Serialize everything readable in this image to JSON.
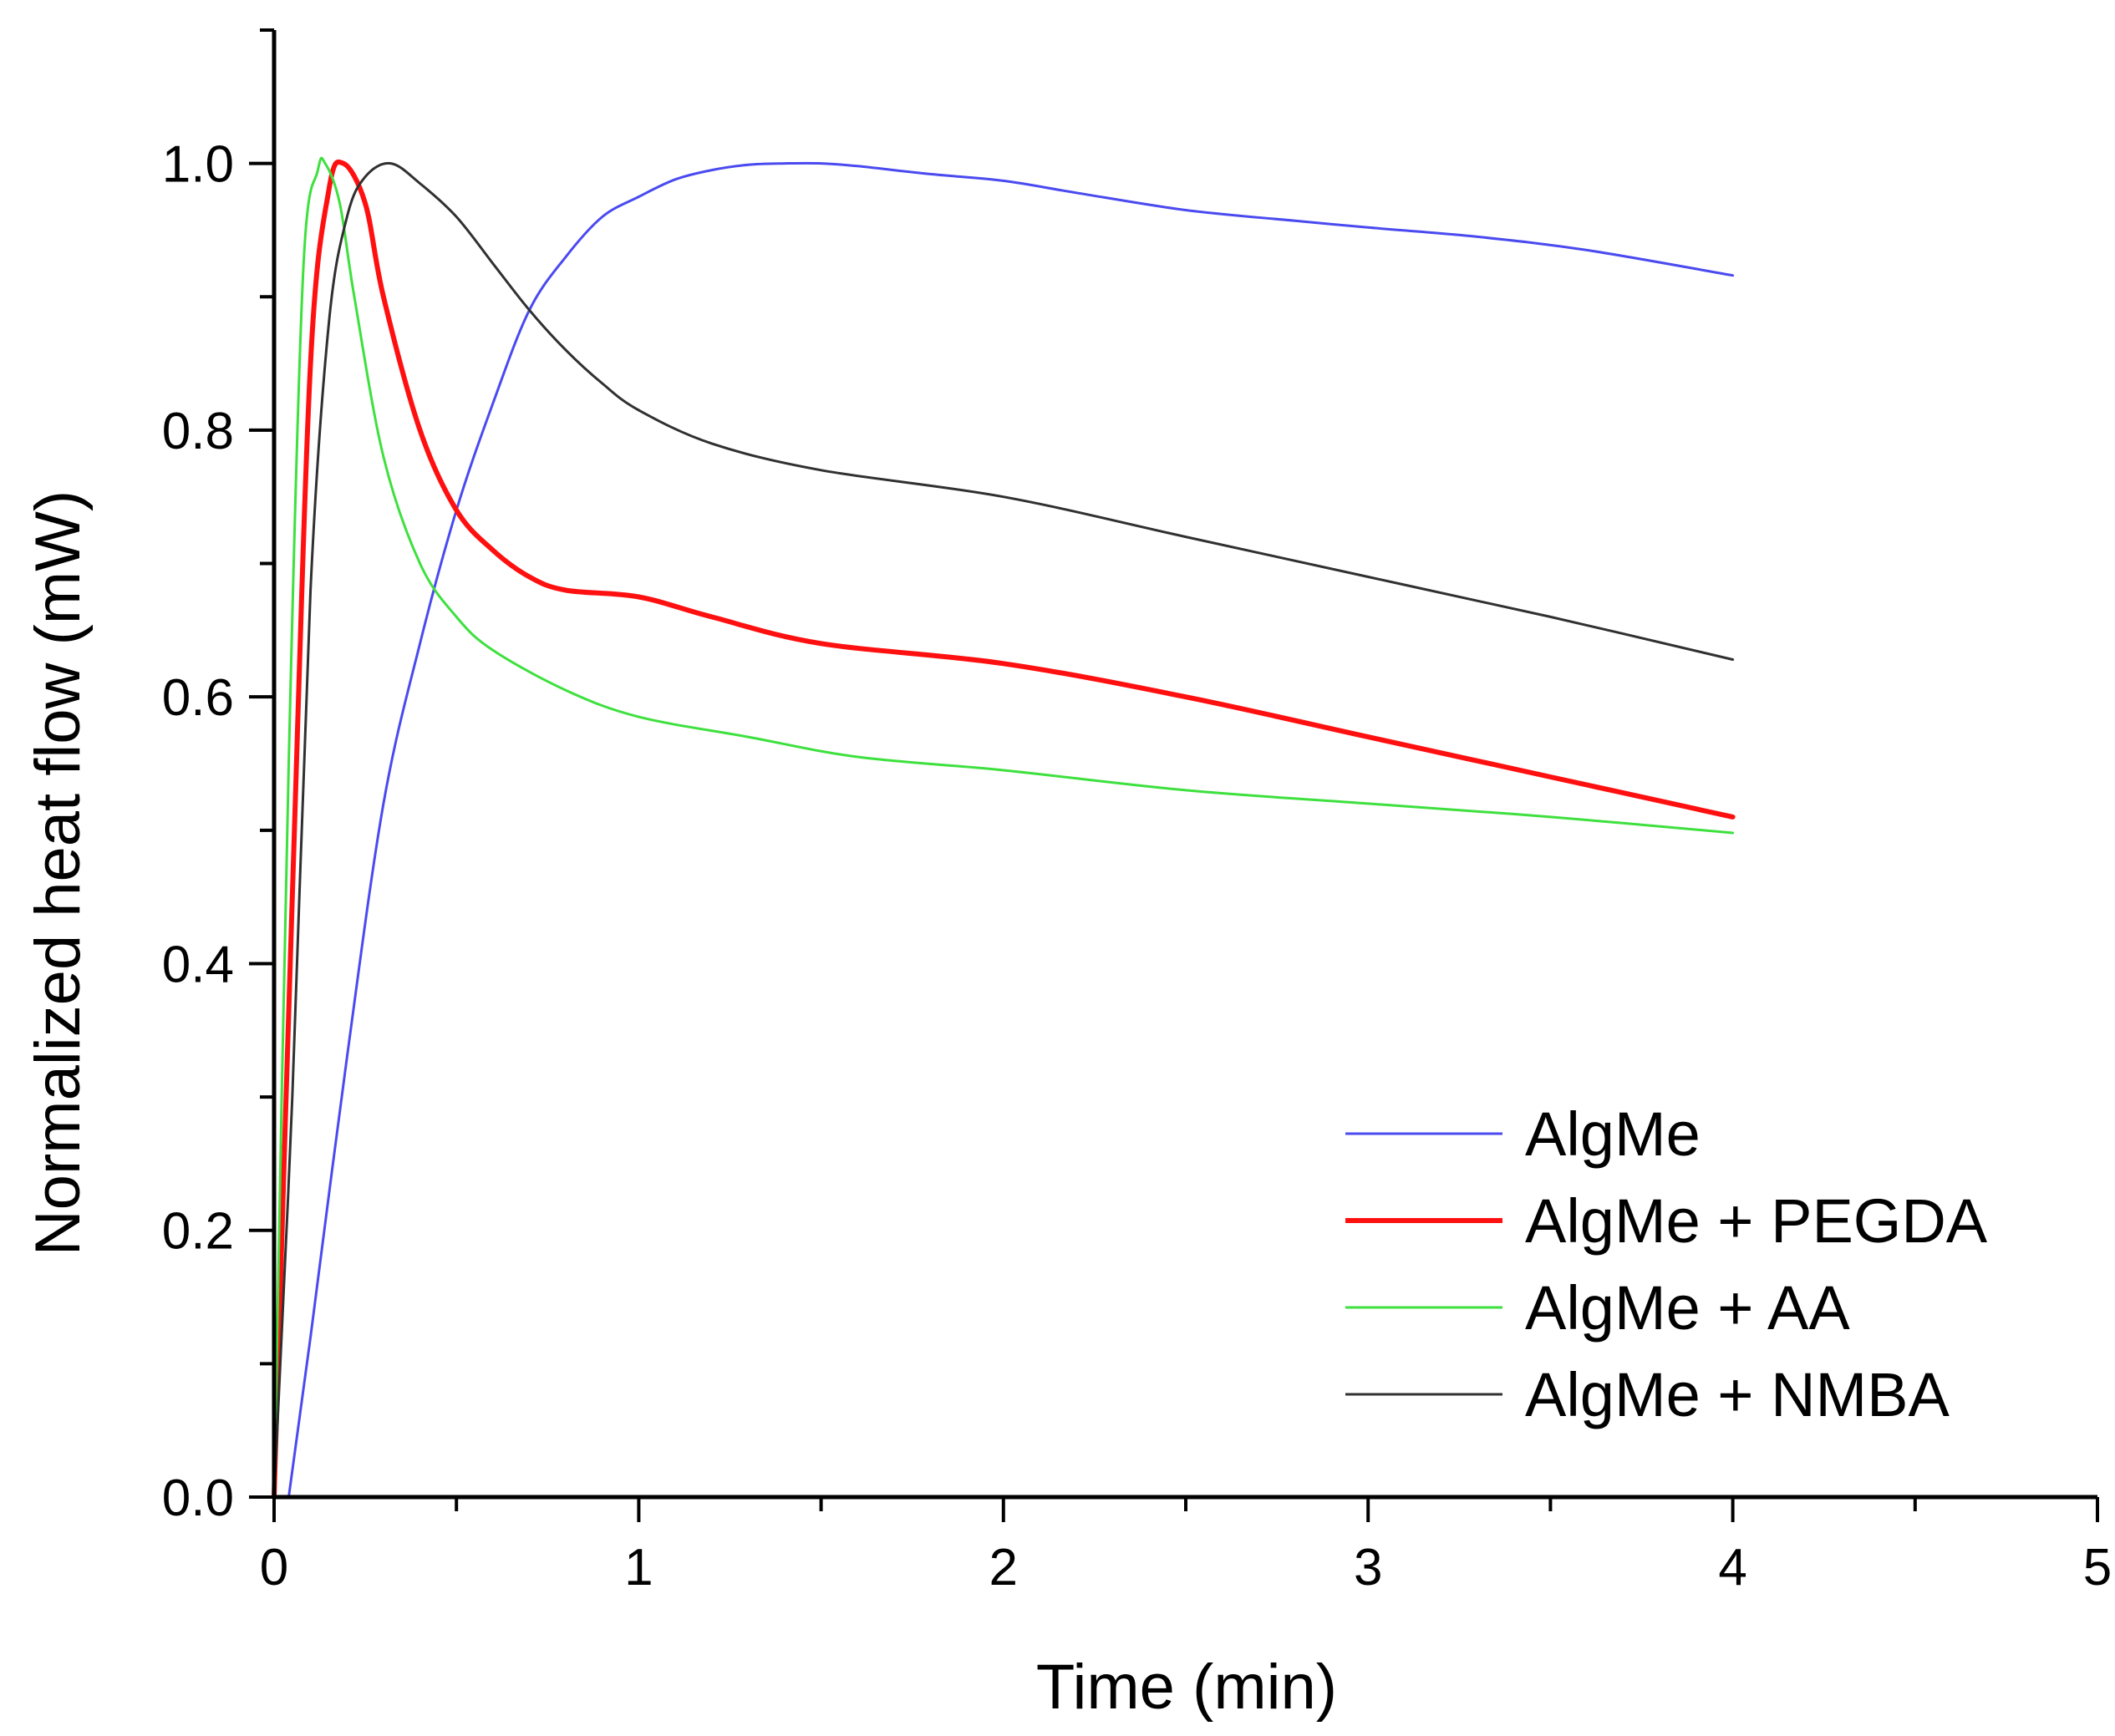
{
  "chart_data": {
    "type": "line",
    "title": "",
    "xlabel": "Time (min)",
    "ylabel": "Normalized heat flow (mW)",
    "xlim": [
      0,
      5
    ],
    "ylim": [
      0,
      1.1
    ],
    "xticks": [
      "0",
      "1",
      "2",
      "3",
      "4",
      "5"
    ],
    "yticks": [
      "0.0",
      "0.2",
      "0.4",
      "0.6",
      "0.8",
      "1.0"
    ],
    "grid": false,
    "legend_position": "bottom-right",
    "series": [
      {
        "name": "AlgMe",
        "color": "#4a4af0",
        "x": [
          0.04,
          0.1,
          0.2,
          0.3,
          0.4,
          0.5,
          0.6,
          0.7,
          0.8,
          0.9,
          1.0,
          1.1,
          1.2,
          1.3,
          1.4,
          1.5,
          1.6,
          1.8,
          2.0,
          2.2,
          2.5,
          2.8,
          3.0,
          3.3,
          3.6,
          4.0
        ],
        "y": [
          0.0,
          0.12,
          0.33,
          0.52,
          0.64,
          0.74,
          0.82,
          0.89,
          0.93,
          0.96,
          0.975,
          0.988,
          0.995,
          0.999,
          1.0,
          1.0,
          0.998,
          0.992,
          0.987,
          0.978,
          0.965,
          0.957,
          0.952,
          0.945,
          0.935,
          0.916
        ]
      },
      {
        "name": "AlgMe + PEGDA",
        "color": "#ff1010",
        "x": [
          0.0,
          0.05,
          0.1,
          0.15,
          0.19,
          0.25,
          0.3,
          0.4,
          0.5,
          0.6,
          0.7,
          0.8,
          1.0,
          1.2,
          1.5,
          2.0,
          2.5,
          3.0,
          3.5,
          4.0
        ],
        "y": [
          0.0,
          0.45,
          0.85,
          0.98,
          1.0,
          0.97,
          0.9,
          0.8,
          0.74,
          0.71,
          0.69,
          0.68,
          0.675,
          0.66,
          0.64,
          0.625,
          0.6,
          0.57,
          0.54,
          0.51
        ]
      },
      {
        "name": "AlgMe + AA",
        "color": "#3ee03e",
        "x": [
          0.0,
          0.04,
          0.08,
          0.12,
          0.14,
          0.18,
          0.22,
          0.3,
          0.4,
          0.5,
          0.6,
          0.8,
          1.0,
          1.3,
          1.6,
          2.0,
          2.5,
          3.0,
          3.5,
          4.0
        ],
        "y": [
          0.0,
          0.55,
          0.92,
          0.995,
          1.0,
          0.97,
          0.9,
          0.78,
          0.7,
          0.66,
          0.635,
          0.605,
          0.585,
          0.57,
          0.555,
          0.545,
          0.53,
          0.52,
          0.51,
          0.498
        ]
      },
      {
        "name": "AlgMe + NMBA",
        "color": "#303030",
        "x": [
          0.0,
          0.05,
          0.1,
          0.15,
          0.2,
          0.25,
          0.32,
          0.4,
          0.5,
          0.6,
          0.7,
          0.8,
          0.9,
          1.0,
          1.2,
          1.5,
          2.0,
          2.5,
          3.0,
          3.5,
          4.0
        ],
        "y": [
          0.0,
          0.3,
          0.68,
          0.88,
          0.96,
          0.99,
          1.0,
          0.985,
          0.96,
          0.925,
          0.89,
          0.86,
          0.835,
          0.815,
          0.79,
          0.77,
          0.75,
          0.72,
          0.69,
          0.66,
          0.628
        ]
      }
    ]
  }
}
